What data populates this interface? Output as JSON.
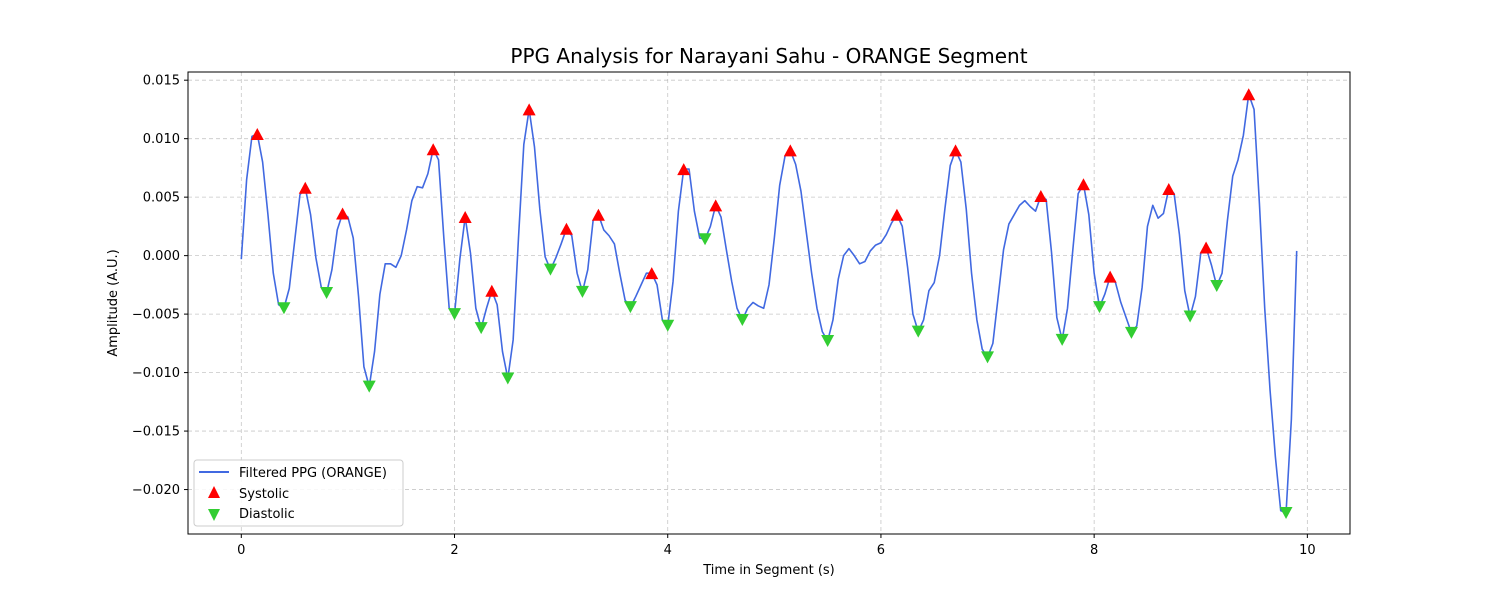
{
  "chart_data": {
    "type": "line",
    "title": "PPG Analysis for Narayani Sahu - ORANGE Segment",
    "xlabel": "Time in Segment (s)",
    "ylabel": "Amplitude (A.U.)",
    "xlim": [
      -0.5,
      10.4
    ],
    "ylim": [
      -0.0238,
      0.0157
    ],
    "xticks": [
      0,
      2,
      4,
      6,
      8,
      10
    ],
    "xtick_labels": [
      "0",
      "2",
      "4",
      "6",
      "8",
      "10"
    ],
    "yticks": [
      -0.02,
      -0.015,
      -0.01,
      -0.005,
      0.0,
      0.005,
      0.01,
      0.015
    ],
    "ytick_labels": [
      "−0.020",
      "−0.015",
      "−0.010",
      "−0.005",
      "0.000",
      "0.005",
      "0.010",
      "0.015"
    ],
    "grid": true,
    "legend_position": "lower-left",
    "colors": {
      "signal": "#4169e1",
      "systolic": "#ff0000",
      "diastolic": "#32cd32"
    },
    "series": [
      {
        "name": "Filtered PPG (ORANGE)",
        "kind": "line",
        "x": [
          0,
          0.05,
          0.1,
          0.15,
          0.2,
          0.25,
          0.3,
          0.35,
          0.4,
          0.45,
          0.5,
          0.55,
          0.6,
          0.65,
          0.7,
          0.75,
          0.8,
          0.85,
          0.9,
          0.95,
          1.0,
          1.05,
          1.1,
          1.15,
          1.2,
          1.25,
          1.3,
          1.35,
          1.4,
          1.45,
          1.5,
          1.55,
          1.6,
          1.65,
          1.7,
          1.75,
          1.8,
          1.85,
          1.9,
          1.95,
          2.0,
          2.05,
          2.1,
          2.15,
          2.2,
          2.25,
          2.3,
          2.35,
          2.4,
          2.45,
          2.5,
          2.55,
          2.6,
          2.65,
          2.7,
          2.75,
          2.8,
          2.85,
          2.9,
          2.95,
          3.0,
          3.05,
          3.1,
          3.15,
          3.2,
          3.25,
          3.3,
          3.35,
          3.4,
          3.45,
          3.5,
          3.55,
          3.6,
          3.65,
          3.7,
          3.75,
          3.8,
          3.85,
          3.9,
          3.95,
          4.0,
          4.05,
          4.1,
          4.15,
          4.2,
          4.25,
          4.3,
          4.35,
          4.4,
          4.45,
          4.5,
          4.55,
          4.6,
          4.65,
          4.7,
          4.75,
          4.8,
          4.85,
          4.9,
          4.95,
          5.0,
          5.05,
          5.1,
          5.15,
          5.2,
          5.25,
          5.3,
          5.35,
          5.4,
          5.45,
          5.5,
          5.55,
          5.6,
          5.65,
          5.7,
          5.75,
          5.8,
          5.85,
          5.9,
          5.95,
          6.0,
          6.05,
          6.1,
          6.15,
          6.2,
          6.25,
          6.3,
          6.35,
          6.4,
          6.45,
          6.5,
          6.55,
          6.6,
          6.65,
          6.7,
          6.75,
          6.8,
          6.85,
          6.9,
          6.95,
          7.0,
          7.05,
          7.1,
          7.15,
          7.2,
          7.25,
          7.3,
          7.35,
          7.4,
          7.45,
          7.5,
          7.55,
          7.6,
          7.65,
          7.7,
          7.75,
          7.8,
          7.85,
          7.9,
          7.95,
          8.0,
          8.05,
          8.1,
          8.15,
          8.2,
          8.25,
          8.3,
          8.35,
          8.4,
          8.45,
          8.5,
          8.55,
          8.6,
          8.65,
          8.7,
          8.75,
          8.8,
          8.85,
          8.9,
          8.95,
          9.0,
          9.05,
          9.1,
          9.15,
          9.2,
          9.25,
          9.3,
          9.35,
          9.4,
          9.45,
          9.5,
          9.55,
          9.6,
          9.65,
          9.7,
          9.75,
          9.8,
          9.85,
          9.9
        ],
        "y": [
          -0.0003,
          0.0065,
          0.0102,
          0.0104,
          0.008,
          0.0035,
          -0.0015,
          -0.0042,
          -0.0045,
          -0.0028,
          0.0012,
          0.0052,
          0.0058,
          0.0035,
          -0.0002,
          -0.0027,
          -0.0032,
          -0.0012,
          0.0022,
          0.0036,
          0.0033,
          0.0015,
          -0.0035,
          -0.0095,
          -0.0112,
          -0.0082,
          -0.0033,
          -0.0007,
          -0.0007,
          -0.001,
          0.0,
          0.0022,
          0.0047,
          0.0059,
          0.0058,
          0.007,
          0.0091,
          0.0082,
          0.0015,
          -0.0045,
          -0.005,
          -0.0003,
          0.0033,
          0.0002,
          -0.0045,
          -0.0062,
          -0.0045,
          -0.003,
          -0.0042,
          -0.0082,
          -0.0105,
          -0.0072,
          0.0015,
          0.0095,
          0.0125,
          0.0093,
          0.004,
          -0.0001,
          -0.0012,
          -0.0002,
          0.001,
          0.0023,
          0.0017,
          -0.0015,
          -0.0031,
          -0.0012,
          0.003,
          0.0035,
          0.0022,
          0.0017,
          0.001,
          -0.0015,
          -0.0038,
          -0.0044,
          -0.0035,
          -0.0025,
          -0.0015,
          -0.0015,
          -0.0025,
          -0.0055,
          -0.006,
          -0.0022,
          0.0038,
          0.0074,
          0.0074,
          0.0038,
          0.0015,
          0.0014,
          0.0025,
          0.0043,
          0.0033,
          0.0005,
          -0.0022,
          -0.0045,
          -0.0055,
          -0.0045,
          -0.004,
          -0.0043,
          -0.0045,
          -0.0025,
          0.0015,
          0.006,
          0.0085,
          0.009,
          0.0078,
          0.0055,
          0.002,
          -0.0015,
          -0.0045,
          -0.0065,
          -0.0073,
          -0.0055,
          -0.002,
          0.0,
          0.0006,
          0.0,
          -0.0007,
          -0.0005,
          0.0004,
          0.0009,
          0.0011,
          0.0018,
          0.0028,
          0.0035,
          0.0025,
          -0.001,
          -0.005,
          -0.0065,
          -0.0055,
          -0.003,
          -0.0023,
          0.0,
          0.004,
          0.0077,
          0.009,
          0.008,
          0.004,
          -0.0015,
          -0.0055,
          -0.008,
          -0.0087,
          -0.0075,
          -0.0035,
          0.0005,
          0.0027,
          0.0035,
          0.0043,
          0.0047,
          0.0042,
          0.0038,
          0.0051,
          0.0048,
          0.0003,
          -0.0053,
          -0.0072,
          -0.0045,
          0.0005,
          0.0053,
          0.0061,
          0.0035,
          -0.0015,
          -0.0044,
          -0.0033,
          -0.0018,
          -0.0023,
          -0.004,
          -0.0053,
          -0.0066,
          -0.006,
          -0.0027,
          0.0025,
          0.0043,
          0.0032,
          0.0036,
          0.0057,
          0.0053,
          0.0018,
          -0.003,
          -0.0052,
          -0.0035,
          0.0002,
          0.0007,
          -0.0008,
          -0.0026,
          -0.0015,
          0.003,
          0.0068,
          0.0082,
          0.0103,
          0.0138,
          0.0125,
          0.0045,
          -0.0045,
          -0.0115,
          -0.0172,
          -0.0218,
          -0.022,
          -0.014,
          0.0004
        ]
      },
      {
        "name": "Systolic",
        "kind": "marker-up",
        "x": [
          0.15,
          0.6,
          0.95,
          1.8,
          2.1,
          2.35,
          2.7,
          3.05,
          3.35,
          3.85,
          4.15,
          4.45,
          5.15,
          6.15,
          6.7,
          7.5,
          7.9,
          8.15,
          8.7,
          9.05,
          9.45
        ],
        "y": [
          0.0104,
          0.0058,
          0.0036,
          0.0091,
          0.0033,
          -0.003,
          0.0125,
          0.0023,
          0.0035,
          -0.0015,
          0.0074,
          0.0043,
          0.009,
          0.0035,
          0.009,
          0.0051,
          0.0061,
          -0.0018,
          0.0057,
          0.0007,
          0.0138
        ]
      },
      {
        "name": "Diastolic",
        "kind": "marker-down",
        "x": [
          0.4,
          0.8,
          1.2,
          2.0,
          2.25,
          2.5,
          2.9,
          3.2,
          3.65,
          4.0,
          4.35,
          4.7,
          5.5,
          6.35,
          7.0,
          7.7,
          8.05,
          8.35,
          8.9,
          9.15,
          9.8
        ],
        "y": [
          -0.0045,
          -0.0032,
          -0.0112,
          -0.005,
          -0.0062,
          -0.0105,
          -0.0012,
          -0.0031,
          -0.0044,
          -0.006,
          0.0014,
          -0.0055,
          -0.0073,
          -0.0065,
          -0.0087,
          -0.0072,
          -0.0044,
          -0.0066,
          -0.0052,
          -0.0026,
          -0.022
        ]
      }
    ]
  }
}
